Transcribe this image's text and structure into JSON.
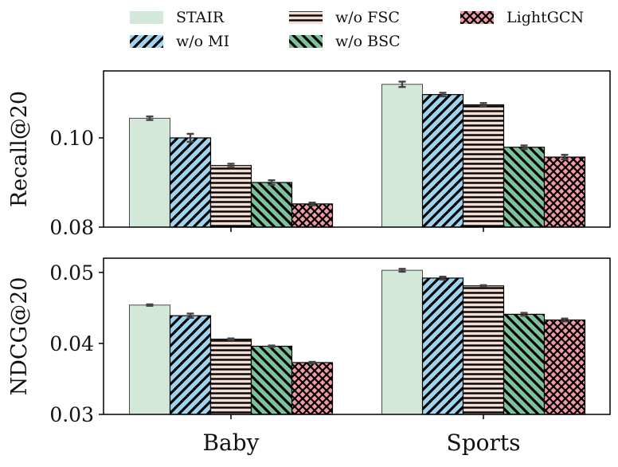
{
  "chart_data": {
    "type": "bar",
    "layout": "two stacked panels sharing categories",
    "categories": [
      "Baby",
      "Sports"
    ],
    "legend": {
      "placement": "top",
      "entries": [
        "STAIR",
        "w/o MI",
        "w/o FSC",
        "w/o BSC",
        "LightGCN"
      ]
    },
    "series_styles": [
      {
        "name": "STAIR",
        "color": "#d4e8da",
        "hatch": "none"
      },
      {
        "name": "w/o MI",
        "color": "#a3d4ee",
        "hatch": "forward-diagonal"
      },
      {
        "name": "w/o FSC",
        "color": "#f6ddd0",
        "hatch": "horizontal"
      },
      {
        "name": "w/o BSC",
        "color": "#7cc29b",
        "hatch": "back-diagonal"
      },
      {
        "name": "LightGCN",
        "color": "#ef9ba4",
        "hatch": "crosshatch"
      }
    ],
    "panels": [
      {
        "ylabel": "Recall@20",
        "ylim": [
          0.08,
          0.115
        ],
        "yticks": [
          0.08,
          0.1
        ],
        "ytick_labels": [
          "0.08",
          "0.10"
        ],
        "series": [
          {
            "name": "STAIR",
            "values": [
              0.1044,
              0.112
            ],
            "errors": [
              0.0004,
              0.0006
            ]
          },
          {
            "name": "w/o MI",
            "values": [
              0.1,
              0.1097
            ],
            "errors": [
              0.0009,
              0.0004
            ]
          },
          {
            "name": "w/o FSC",
            "values": [
              0.0938,
              0.1074
            ],
            "errors": [
              0.0004,
              0.0004
            ]
          },
          {
            "name": "w/o BSC",
            "values": [
              0.09,
              0.0979
            ],
            "errors": [
              0.0005,
              0.0004
            ]
          },
          {
            "name": "LightGCN",
            "values": [
              0.0852,
              0.0957
            ],
            "errors": [
              0.0003,
              0.0005
            ]
          }
        ]
      },
      {
        "ylabel": "NDCG@20",
        "ylim": [
          0.03,
          0.052
        ],
        "yticks": [
          0.03,
          0.04,
          0.05
        ],
        "ytick_labels": [
          "0.03",
          "0.04",
          "0.05"
        ],
        "series": [
          {
            "name": "STAIR",
            "values": [
              0.0454,
              0.0503
            ],
            "errors": [
              0.0001,
              0.0002
            ]
          },
          {
            "name": "w/o MI",
            "values": [
              0.0439,
              0.0492
            ],
            "errors": [
              0.0003,
              0.0002
            ]
          },
          {
            "name": "w/o FSC",
            "values": [
              0.0406,
              0.0481
            ],
            "errors": [
              0.0001,
              0.0001
            ]
          },
          {
            "name": "w/o BSC",
            "values": [
              0.0396,
              0.0441
            ],
            "errors": [
              0.0001,
              0.0002
            ]
          },
          {
            "name": "LightGCN",
            "values": [
              0.0373,
              0.0433
            ],
            "errors": [
              0.0001,
              0.0002
            ]
          }
        ]
      }
    ]
  }
}
